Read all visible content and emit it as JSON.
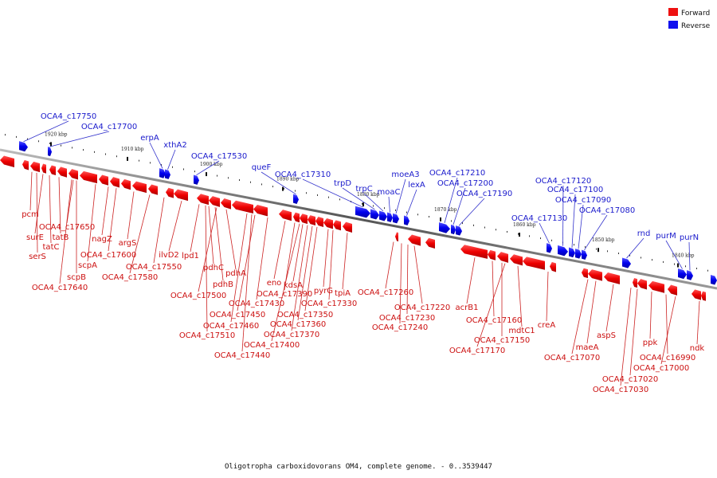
{
  "legend": [
    {
      "label": "Forward",
      "color": "#ee1111"
    },
    {
      "label": "Reverse",
      "color": "#1111ee"
    }
  ],
  "caption": "Oligotropha carboxidovorans OM4, complete genome. - 0..3539447",
  "ticks": [
    "1920 kbp",
    "1910 kbp",
    "1900 kbp",
    "1890 kbp",
    "1880 kbp",
    "1870 kbp",
    "1860 kbp",
    "1850 kbp",
    "1840 kbp"
  ],
  "reverse_genes": [
    "OCA4_c17750",
    "OCA4_c17700",
    "erpA",
    "xthA2",
    "OCA4_c17530",
    "queF",
    "OCA4_c17310",
    "trpD",
    "trpC",
    "moaC",
    "moeA3",
    "lexA",
    "OCA4_c17210",
    "OCA4_c17200",
    "OCA4_c17190",
    "OCA4_c17130",
    "OCA4_c17120",
    "OCA4_c17100",
    "OCA4_c17090",
    "OCA4_c17080",
    "rnd",
    "purM",
    "purN"
  ],
  "forward_genes": [
    "pcm",
    "surE",
    "tatC",
    "serS",
    "tatB",
    "OCA4_c17650",
    "scpB",
    "OCA4_c17640",
    "nagZ",
    "scpA",
    "OCA4_c17600",
    "argS",
    "OCA4_c17580",
    "OCA4_c17550",
    "ilvD2",
    "lpd1",
    "pdhC",
    "pdhB",
    "pdhA",
    "OCA4_c17500",
    "OCA4_c17510",
    "OCA4_c17430",
    "OCA4_c17450",
    "OCA4_c17460",
    "eno",
    "OCA4_c17390",
    "kdsA",
    "OCA4_c17400",
    "OCA4_c17440",
    "OCA4_c17350",
    "OCA4_c17360",
    "OCA4_c17370",
    "pyrG",
    "OCA4_c17330",
    "tpiA",
    "OCA4_c17260",
    "OCA4_c17220",
    "OCA4_c17230",
    "OCA4_c17240",
    "acrB1",
    "OCA4_c17160",
    "OCA4_c17150",
    "OCA4_c17170",
    "mdtC1",
    "creA",
    "maeA",
    "OCA4_c17070",
    "aspS",
    "ppk",
    "OCA4_c16990",
    "OCA4_c17000",
    "OCA4_c17020",
    "OCA4_c17030",
    "ndk"
  ]
}
